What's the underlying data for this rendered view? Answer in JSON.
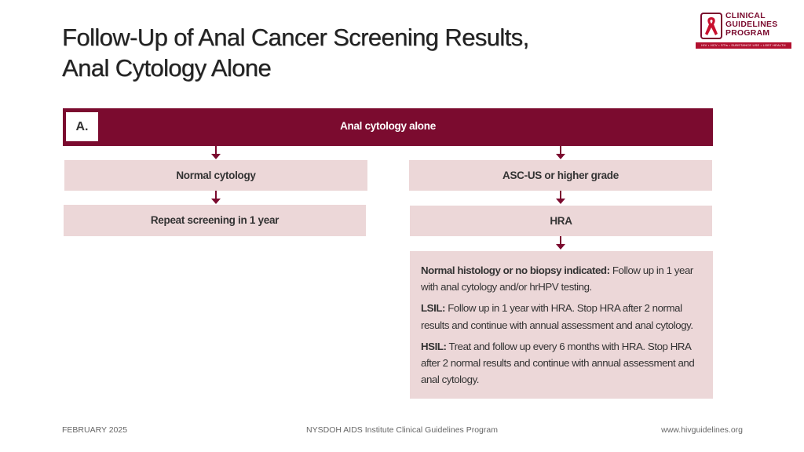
{
  "slide": {
    "title_line1": "Follow-Up of Anal Cancer Screening Results,",
    "title_line2": "Anal Cytology Alone"
  },
  "logo": {
    "line1": "CLINICAL",
    "line2": "GUIDELINES",
    "line3": "PROGRAM",
    "tagline": "HIV • HCV • STIs • SUBSTANCE USE • LGBT HEALTH",
    "icon": "red-ribbon-icon",
    "color": "#7a0a2e"
  },
  "flowchart": {
    "panel_label": "A.",
    "header": "Anal cytology alone",
    "left_branch": {
      "result": "Normal cytology",
      "action": "Repeat screening in 1 year"
    },
    "right_branch": {
      "result": "ASC-US or higher grade",
      "action": "HRA",
      "outcomes": [
        {
          "label": "Normal histology or no biopsy indicated:",
          "text": " Follow up in 1 year with anal cytology and/or hrHPV testing."
        },
        {
          "label": "LSIL:",
          "text": " Follow up in 1 year with HRA. Stop HRA after 2 normal results and continue with annual assessment and anal cytology."
        },
        {
          "label": "HSIL:",
          "text": " Treat and follow up every 6 months with HRA. Stop HRA after 2 normal results and continue with annual assessment and anal cytology."
        }
      ]
    },
    "colors": {
      "header": "#7b0b2f",
      "box": "#ecd7d8",
      "arrow": "#7b0b2f"
    }
  },
  "footer": {
    "date": "FEBRUARY 2025",
    "org": "NYSDOH AIDS Institute Clinical Guidelines Program",
    "url": "www.hivguidelines.org"
  }
}
